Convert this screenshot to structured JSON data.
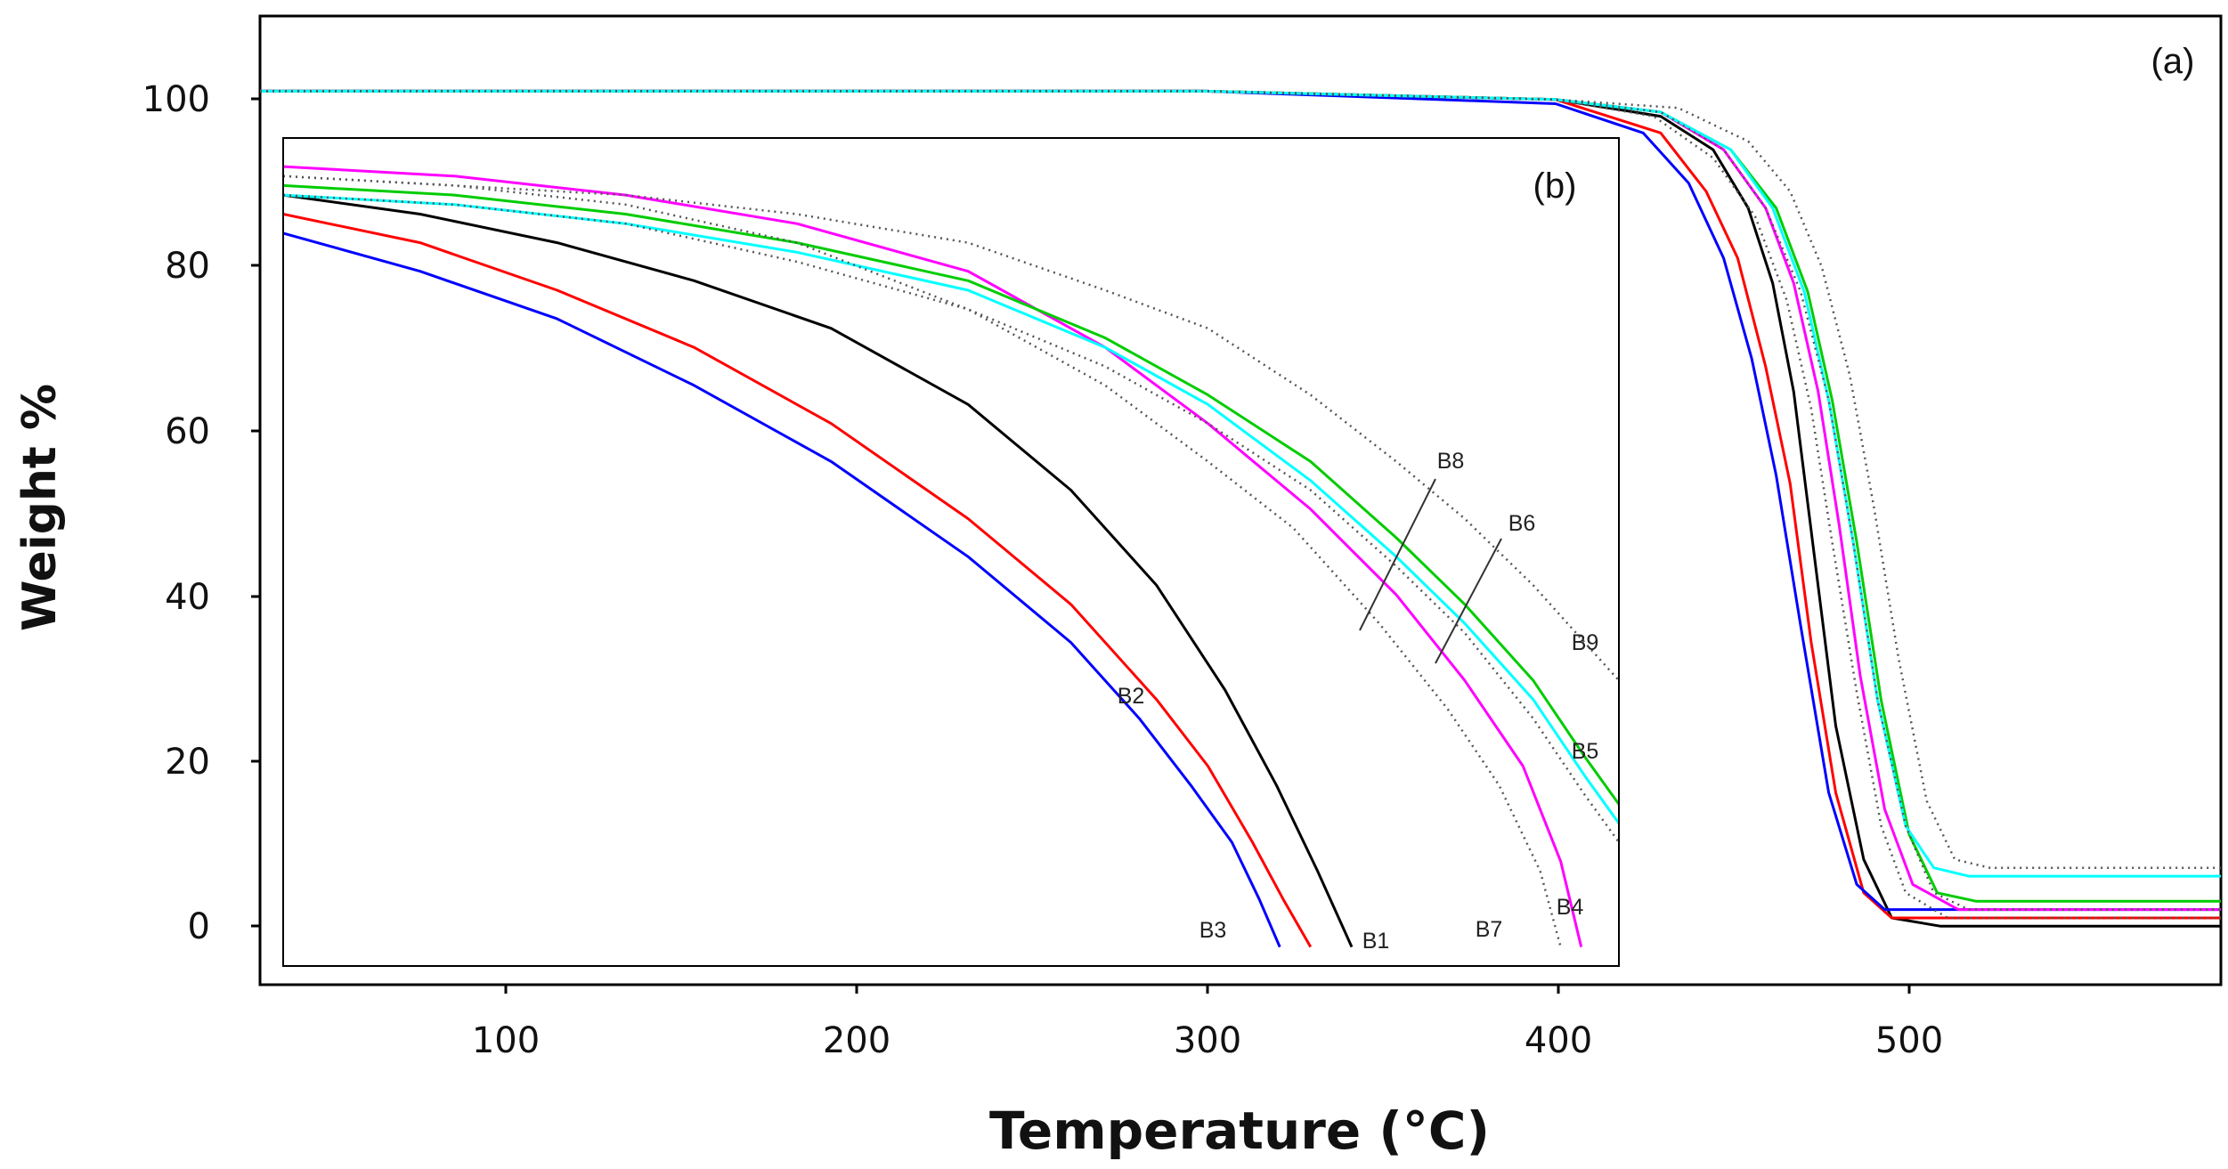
{
  "chart_data": [
    {
      "panel": "(a)",
      "type": "line",
      "xlabel": "Temperature (°C)",
      "ylabel": "Weight %",
      "xlim": [
        30,
        590
      ],
      "ylim": [
        -7,
        109
      ],
      "xticks": [
        "100",
        "200",
        "300",
        "400",
        "500"
      ],
      "yticks": [
        "0",
        "20",
        "40",
        "60",
        "80",
        "100"
      ],
      "series": [
        {
          "name": "B1",
          "color": "#000000",
          "style": "solid",
          "x": [
            30,
            300,
            400,
            430,
            445,
            455,
            462,
            468,
            474,
            480,
            488,
            496,
            510,
            590
          ],
          "y": [
            100,
            100,
            99,
            97,
            93,
            86,
            77,
            64,
            44,
            24,
            8,
            1,
            0,
            0
          ]
        },
        {
          "name": "B2",
          "color": "#ff0000",
          "style": "solid",
          "x": [
            30,
            300,
            400,
            430,
            443,
            452,
            460,
            467,
            473,
            480,
            488,
            496,
            510,
            590
          ],
          "y": [
            100,
            100,
            99,
            95,
            88,
            80,
            67,
            53,
            34,
            16,
            4,
            1,
            1,
            1
          ]
        },
        {
          "name": "B3",
          "color": "#0000ff",
          "style": "solid",
          "x": [
            30,
            300,
            400,
            425,
            438,
            448,
            456,
            463,
            470,
            478,
            486,
            494,
            505,
            590
          ],
          "y": [
            100,
            100,
            98.5,
            95,
            89,
            80,
            68,
            54,
            36,
            16,
            5,
            2,
            2,
            2
          ]
        },
        {
          "name": "B4",
          "color": "#ff00ff",
          "style": "solid",
          "x": [
            30,
            300,
            400,
            430,
            448,
            460,
            468,
            475,
            481,
            487,
            494,
            502,
            515,
            590
          ],
          "y": [
            100,
            100,
            99,
            97.5,
            93,
            86,
            77,
            64,
            48,
            30,
            14,
            5,
            2,
            2
          ]
        },
        {
          "name": "B5",
          "color": "#00cc00",
          "style": "solid",
          "x": [
            30,
            300,
            400,
            430,
            450,
            463,
            472,
            479,
            486,
            493,
            501,
            509,
            520,
            590
          ],
          "y": [
            100,
            100,
            99,
            97.5,
            93,
            86,
            76,
            63,
            46,
            27,
            11,
            4,
            3,
            3
          ]
        },
        {
          "name": "B6",
          "color": "#00ffff",
          "style": "solid",
          "x": [
            30,
            300,
            400,
            430,
            450,
            462,
            471,
            478,
            485,
            492,
            500,
            508,
            518,
            590
          ],
          "y": [
            100,
            100,
            99,
            97.5,
            93,
            86,
            76,
            63,
            46,
            27,
            12,
            7,
            6,
            6
          ]
        },
        {
          "name": "B7",
          "color": "#555555",
          "style": "dotted",
          "x": [
            30,
            300,
            400,
            428,
            445,
            457,
            466,
            473,
            479,
            486,
            493,
            500,
            512,
            590
          ],
          "y": [
            100,
            100,
            99,
            97,
            92,
            85,
            75,
            62,
            46,
            28,
            12,
            4,
            1,
            1
          ]
        },
        {
          "name": "B8",
          "color": "#555555",
          "style": "dotted",
          "x": [
            30,
            300,
            400,
            430,
            448,
            460,
            470,
            478,
            485,
            492,
            500,
            508,
            518,
            590
          ],
          "y": [
            100,
            100,
            99,
            97.5,
            93,
            86,
            76,
            63,
            46,
            27,
            12,
            4,
            2,
            2
          ]
        },
        {
          "name": "B9",
          "color": "#555555",
          "style": "dotted",
          "x": [
            30,
            300,
            400,
            435,
            455,
            467,
            476,
            484,
            491,
            498,
            506,
            514,
            524,
            590
          ],
          "y": [
            100,
            100,
            99,
            98,
            94,
            88,
            79,
            66,
            50,
            32,
            15,
            8,
            7,
            7
          ]
        }
      ]
    },
    {
      "panel": "(b)",
      "type": "line",
      "description_free": true,
      "xlim": [
        30,
        420
      ],
      "ylim": [
        -7,
        80
      ],
      "series": [
        {
          "name": "B1",
          "color": "#000000",
          "style": "solid",
          "x": [
            30,
            70,
            110,
            150,
            190,
            230,
            260,
            285,
            305,
            320,
            332,
            342
          ],
          "y": [
            74,
            72,
            69,
            65,
            60,
            52,
            43,
            33,
            22,
            12,
            3,
            -5
          ]
        },
        {
          "name": "B2",
          "color": "#ff0000",
          "style": "solid",
          "x": [
            30,
            70,
            110,
            150,
            190,
            230,
            260,
            285,
            300,
            313,
            322,
            330
          ],
          "y": [
            72,
            69,
            64,
            58,
            50,
            40,
            31,
            21,
            14,
            6,
            0,
            -5
          ]
        },
        {
          "name": "B3",
          "color": "#0000ff",
          "style": "solid",
          "x": [
            30,
            70,
            110,
            150,
            190,
            230,
            260,
            280,
            295,
            307,
            315,
            321
          ],
          "y": [
            70,
            66,
            61,
            54,
            46,
            36,
            27,
            19,
            12,
            6,
            0,
            -5
          ]
        },
        {
          "name": "B4",
          "color": "#ff00ff",
          "style": "solid",
          "x": [
            30,
            80,
            130,
            180,
            230,
            270,
            300,
            330,
            355,
            375,
            392,
            403,
            409
          ],
          "y": [
            77,
            76,
            74,
            71,
            66,
            58,
            50,
            41,
            32,
            23,
            14,
            4,
            -5
          ]
        },
        {
          "name": "B5",
          "color": "#00cc00",
          "style": "solid",
          "x": [
            30,
            80,
            130,
            180,
            230,
            270,
            300,
            330,
            355,
            375,
            395,
            410,
            420
          ],
          "y": [
            75,
            74,
            72,
            69,
            65,
            59,
            53,
            46,
            38,
            31,
            23,
            15,
            10
          ]
        },
        {
          "name": "B6",
          "color": "#00ffff",
          "style": "solid",
          "x": [
            30,
            80,
            130,
            180,
            230,
            270,
            300,
            330,
            355,
            375,
            395,
            410,
            420
          ],
          "y": [
            74,
            73,
            71,
            68,
            64,
            58,
            52,
            44,
            36,
            29,
            21,
            13,
            8
          ]
        },
        {
          "name": "B7",
          "color": "#555555",
          "style": "dotted",
          "x": [
            30,
            80,
            130,
            180,
            230,
            270,
            300,
            325,
            350,
            370,
            385,
            397,
            403
          ],
          "y": [
            76,
            75,
            73,
            69,
            62,
            54,
            46,
            39,
            29,
            20,
            12,
            3,
            -5
          ]
        },
        {
          "name": "B8",
          "color": "#555555",
          "style": "dotted",
          "x": [
            30,
            80,
            130,
            180,
            230,
            270,
            300,
            330,
            355,
            375,
            395,
            410,
            420
          ],
          "y": [
            74,
            73,
            71,
            67,
            62,
            56,
            50,
            43,
            35,
            28,
            19,
            11,
            6
          ]
        },
        {
          "name": "B9",
          "color": "#555555",
          "style": "dotted",
          "x": [
            30,
            80,
            130,
            180,
            230,
            270,
            300,
            330,
            355,
            375,
            395,
            410,
            420
          ],
          "y": [
            76,
            75,
            74,
            72,
            69,
            64,
            60,
            53,
            46,
            40,
            33,
            27,
            23
          ]
        }
      ],
      "labels": [
        "B1",
        "B2",
        "B3",
        "B4",
        "B5",
        "B6",
        "B7",
        "B8",
        "B9"
      ]
    }
  ],
  "axis": {
    "xlabel": "Temperature (°C)",
    "ylabel": "Weight %"
  },
  "panels": {
    "a": "(a)",
    "b": "(b)"
  }
}
